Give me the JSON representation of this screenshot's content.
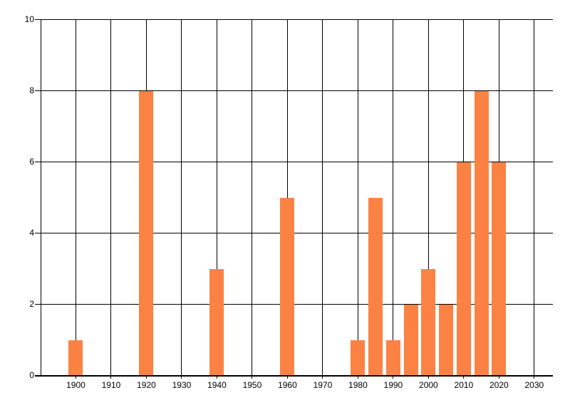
{
  "chart_data": {
    "type": "bar",
    "title": "",
    "xlabel": "",
    "ylabel": "",
    "bars": [
      {
        "year": 1900,
        "value": 1
      },
      {
        "year": 1920,
        "value": 8
      },
      {
        "year": 1940,
        "value": 3
      },
      {
        "year": 1960,
        "value": 5
      },
      {
        "year": 1980,
        "value": 1
      },
      {
        "year": 1985,
        "value": 5
      },
      {
        "year": 1990,
        "value": 1
      },
      {
        "year": 1995,
        "value": 2
      },
      {
        "year": 2000,
        "value": 3
      },
      {
        "year": 2005,
        "value": 2
      },
      {
        "year": 2010,
        "value": 6
      },
      {
        "year": 2015,
        "value": 8
      },
      {
        "year": 2020,
        "value": 6
      }
    ],
    "x_tick_labels": [
      "1900",
      "1910",
      "1920",
      "1930",
      "1940",
      "1950",
      "1960",
      "1970",
      "1980",
      "1990",
      "2000",
      "2010",
      "2020",
      "2030"
    ],
    "x_ticks": [
      1900,
      1910,
      1920,
      1930,
      1940,
      1950,
      1960,
      1970,
      1980,
      1990,
      2000,
      2010,
      2020,
      2030
    ],
    "y_tick_labels": [
      "0",
      "2",
      "4",
      "6",
      "8",
      "10"
    ],
    "y_ticks": [
      0,
      2,
      4,
      6,
      8,
      10
    ],
    "x_range": [
      1890,
      2035.2
    ],
    "ylim": [
      0,
      10
    ],
    "grid": true,
    "legend": false,
    "colors": {
      "bar": "#FC8244",
      "grid": "#000000",
      "axis": "#000000",
      "tick_label": "#000000",
      "background": "#FFFFFF"
    }
  }
}
